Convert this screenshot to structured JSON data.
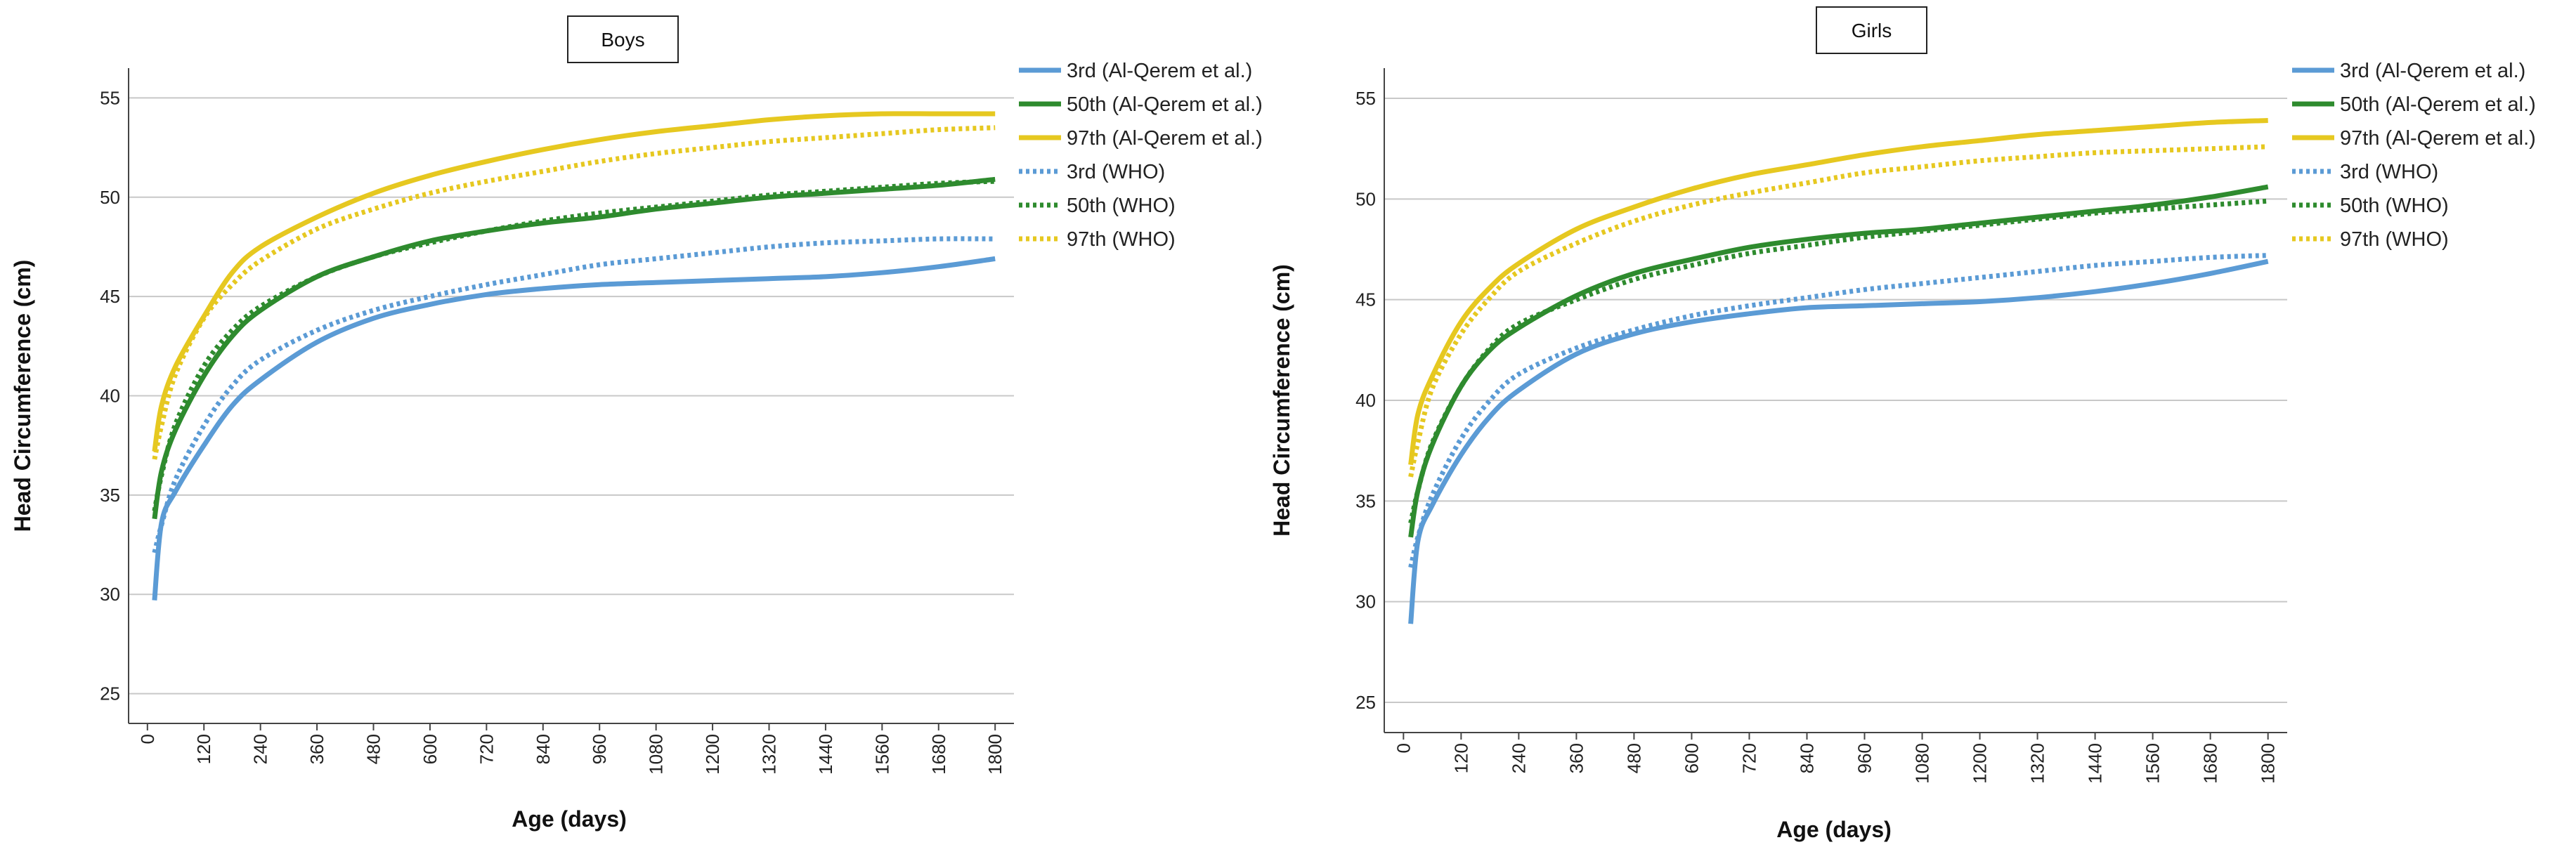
{
  "chart_data": [
    {
      "type": "line",
      "title": "Boys",
      "xlabel": "Age (days)",
      "ylabel": "Head Circumference (cm)",
      "xlim": [
        -40,
        1840
      ],
      "ylim": [
        23.5,
        56.5
      ],
      "xticks": [
        "0",
        "120",
        "240",
        "360",
        "480",
        "600",
        "720",
        "840",
        "960",
        "1080",
        "1200",
        "1320",
        "1440",
        "1560",
        "1680",
        "1800"
      ],
      "yticks": [
        "25",
        "30",
        "35",
        "40",
        "45",
        "50",
        "55"
      ],
      "grid": true,
      "legend_position": "right",
      "colors": {
        "p3": "#5b9bd5",
        "p50": "#2e8b2e",
        "p97": "#e6c820"
      },
      "x": [
        15,
        30,
        60,
        120,
        180,
        240,
        360,
        480,
        600,
        720,
        840,
        960,
        1080,
        1200,
        1320,
        1440,
        1560,
        1680,
        1800
      ],
      "series": [
        {
          "name": "3rd (Al-Qerem et al.)",
          "style": "solid",
          "color_key": "p3",
          "values": [
            29.7,
            33.6,
            35.2,
            37.5,
            39.5,
            40.8,
            42.7,
            43.9,
            44.6,
            45.1,
            45.4,
            45.6,
            45.7,
            45.8,
            45.9,
            46.0,
            46.2,
            46.5,
            46.9
          ]
        },
        {
          "name": "50th (Al-Qerem et al.)",
          "style": "solid",
          "color_key": "p50",
          "values": [
            33.8,
            36.2,
            38.3,
            41.0,
            43.0,
            44.3,
            46.0,
            47.0,
            47.8,
            48.3,
            48.7,
            49.0,
            49.4,
            49.7,
            50.0,
            50.2,
            50.4,
            50.6,
            50.9
          ]
        },
        {
          "name": "97th (Al-Qerem et al.)",
          "style": "solid",
          "color_key": "p97",
          "values": [
            37.2,
            39.5,
            41.5,
            44.0,
            46.2,
            47.5,
            49.0,
            50.2,
            51.1,
            51.8,
            52.4,
            52.9,
            53.3,
            53.6,
            53.9,
            54.1,
            54.2,
            54.2,
            54.2
          ]
        },
        {
          "name": "3rd (WHO)",
          "style": "dotted",
          "color_key": "p3",
          "values": [
            32.1,
            33.5,
            35.8,
            38.5,
            40.5,
            41.8,
            43.3,
            44.3,
            45.0,
            45.6,
            46.1,
            46.6,
            46.9,
            47.2,
            47.5,
            47.7,
            47.8,
            47.9,
            47.9
          ]
        },
        {
          "name": "50th (WHO)",
          "style": "dotted",
          "color_key": "p50",
          "values": [
            34.2,
            36.0,
            38.6,
            41.5,
            43.3,
            44.5,
            46.0,
            47.0,
            47.7,
            48.3,
            48.8,
            49.2,
            49.5,
            49.8,
            50.1,
            50.3,
            50.5,
            50.7,
            50.8
          ]
        },
        {
          "name": "97th (WHO)",
          "style": "dotted",
          "color_key": "p97",
          "values": [
            36.8,
            38.5,
            41.1,
            43.9,
            45.6,
            46.8,
            48.4,
            49.4,
            50.2,
            50.8,
            51.3,
            51.8,
            52.2,
            52.5,
            52.8,
            53.0,
            53.2,
            53.4,
            53.5
          ]
        }
      ]
    },
    {
      "type": "line",
      "title": "Girls",
      "xlabel": "Age (days)",
      "ylabel": "Head Circumference (cm)",
      "xlim": [
        -40,
        1840
      ],
      "ylim": [
        23.5,
        56.5
      ],
      "xticks": [
        "0",
        "120",
        "240",
        "360",
        "480",
        "600",
        "720",
        "840",
        "960",
        "1080",
        "1200",
        "1320",
        "1440",
        "1560",
        "1680",
        "1800"
      ],
      "yticks": [
        "25",
        "30",
        "35",
        "40",
        "45",
        "50",
        "55"
      ],
      "grid": true,
      "legend_position": "right",
      "colors": {
        "p3": "#5b9bd5",
        "p50": "#2e8b2e",
        "p97": "#e6c820"
      },
      "x": [
        15,
        30,
        60,
        120,
        180,
        240,
        360,
        480,
        600,
        720,
        840,
        960,
        1080,
        1200,
        1320,
        1440,
        1560,
        1680,
        1800
      ],
      "series": [
        {
          "name": "3rd (Al-Qerem et al.)",
          "style": "solid",
          "color_key": "p3",
          "values": [
            28.9,
            33.0,
            34.8,
            37.3,
            39.2,
            40.5,
            42.3,
            43.3,
            43.9,
            44.3,
            44.6,
            44.7,
            44.8,
            44.9,
            45.1,
            45.4,
            45.8,
            46.3,
            46.9
          ]
        },
        {
          "name": "50th (Al-Qerem et al.)",
          "style": "solid",
          "color_key": "p50",
          "values": [
            33.2,
            35.5,
            37.8,
            40.7,
            42.5,
            43.6,
            45.2,
            46.3,
            47.0,
            47.6,
            48.0,
            48.3,
            48.5,
            48.8,
            49.1,
            49.4,
            49.7,
            50.1,
            50.6
          ]
        },
        {
          "name": "97th (Al-Qerem et al.)",
          "style": "solid",
          "color_key": "p97",
          "values": [
            36.8,
            39.3,
            41.2,
            43.9,
            45.6,
            46.8,
            48.5,
            49.6,
            50.5,
            51.2,
            51.7,
            52.2,
            52.6,
            52.9,
            53.2,
            53.4,
            53.6,
            53.8,
            53.9
          ]
        },
        {
          "name": "3rd (WHO)",
          "style": "dotted",
          "color_key": "p3",
          "values": [
            31.7,
            33.2,
            35.3,
            38.1,
            40.0,
            41.3,
            42.6,
            43.5,
            44.2,
            44.7,
            45.1,
            45.5,
            45.8,
            46.1,
            46.4,
            46.7,
            46.9,
            47.1,
            47.2
          ]
        },
        {
          "name": "50th (WHO)",
          "style": "dotted",
          "color_key": "p50",
          "values": [
            33.9,
            35.5,
            37.9,
            40.7,
            42.6,
            43.8,
            45.0,
            46.0,
            46.7,
            47.3,
            47.7,
            48.1,
            48.4,
            48.7,
            49.0,
            49.3,
            49.5,
            49.7,
            49.9
          ]
        },
        {
          "name": "97th (WHO)",
          "style": "dotted",
          "color_key": "p97",
          "values": [
            36.2,
            37.9,
            40.6,
            43.3,
            45.1,
            46.4,
            47.8,
            48.9,
            49.7,
            50.3,
            50.8,
            51.3,
            51.6,
            51.9,
            52.1,
            52.3,
            52.4,
            52.5,
            52.6
          ]
        }
      ]
    }
  ]
}
